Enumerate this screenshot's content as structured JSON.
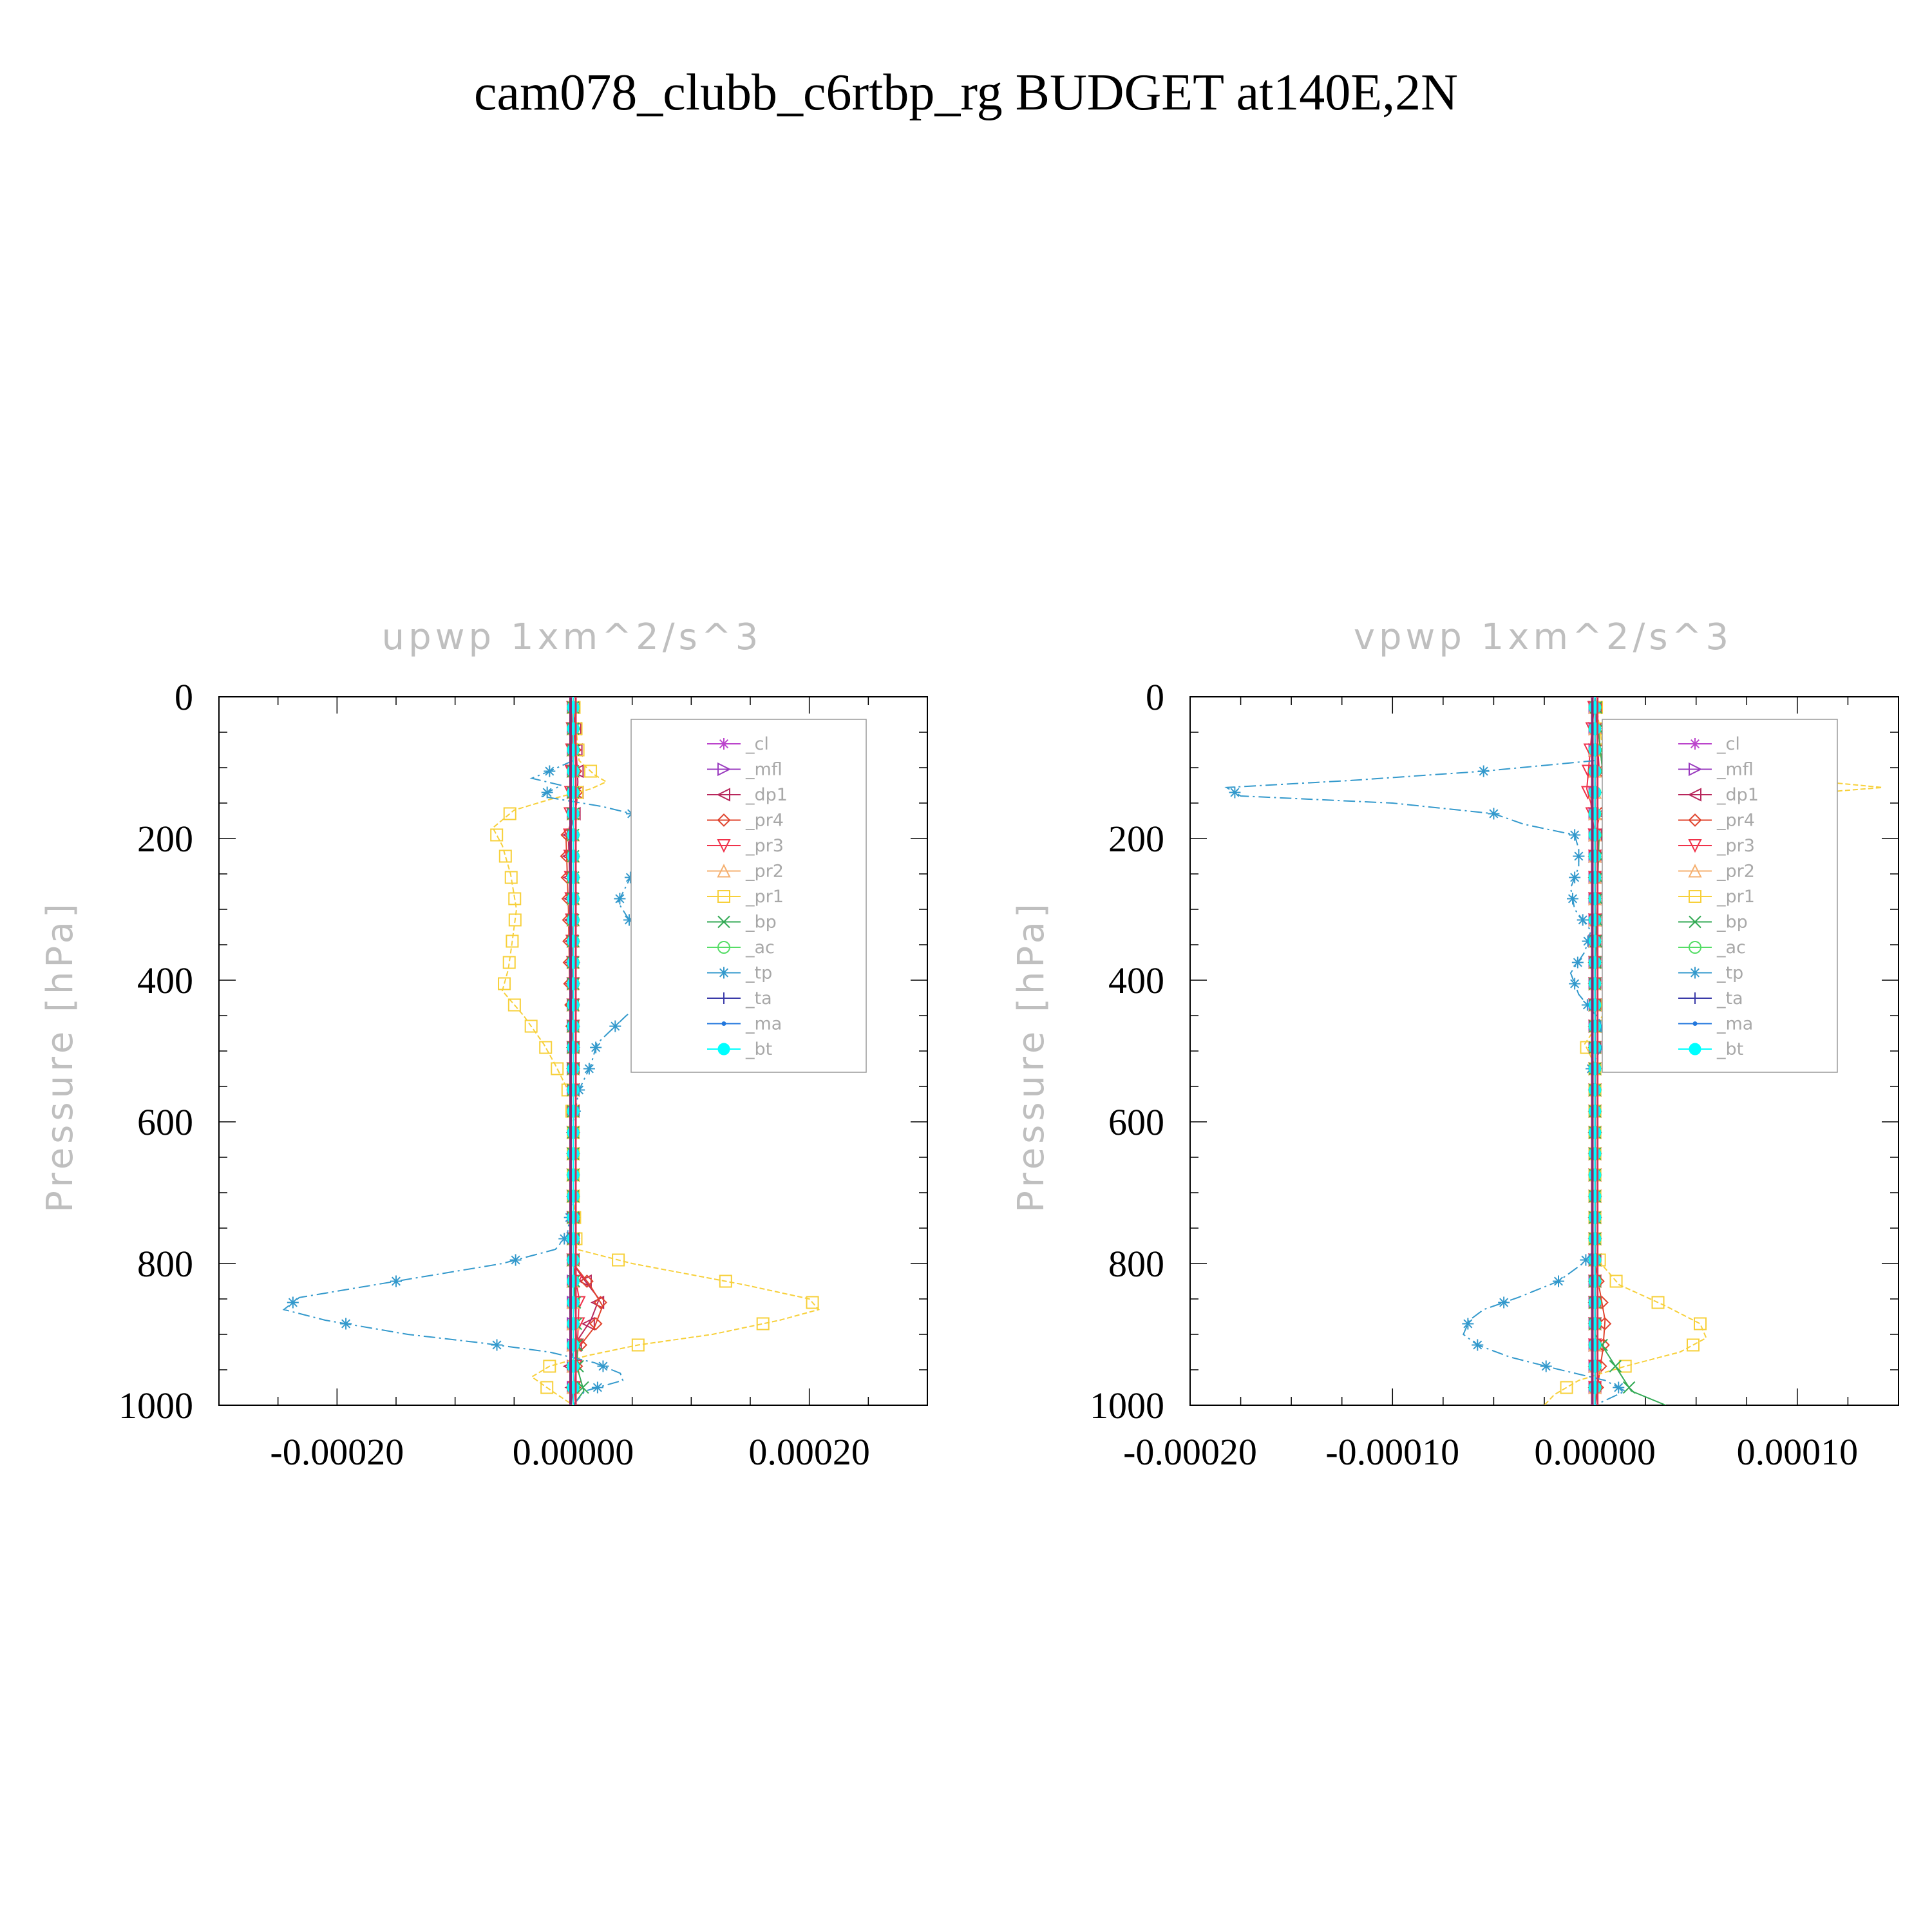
{
  "title": "cam078_clubb_c6rtbp_rg  BUDGET at140E,2N",
  "chart_data": [
    {
      "type": "line",
      "title": "upwp   1xm^2/s^3",
      "ylabel": "Pressure [hPa]",
      "xlim": [
        -0.0003,
        0.0003
      ],
      "ylim": [
        1000,
        0
      ],
      "xticks": [
        -0.0002,
        0.0,
        0.0002
      ],
      "xtick_labels": [
        "-0.00020",
        "0.00000",
        "0.00020"
      ],
      "yticks": [
        0,
        200,
        400,
        600,
        800,
        1000
      ],
      "ytick_labels": [
        "0",
        "200",
        "400",
        "600",
        "800",
        "1000"
      ],
      "legend": "top-right",
      "series": [
        {
          "name": "_cl",
          "color": "#bb44cc",
          "marker": "star",
          "p": [
            0,
            200,
            400,
            600,
            800,
            1000
          ],
          "x": [
            0,
            0,
            0,
            0,
            0,
            0
          ]
        },
        {
          "name": "_mfl",
          "color": "#9a3bbf",
          "marker": "tri-right",
          "p": [
            0,
            200,
            400,
            600,
            800,
            1000
          ],
          "x": [
            0,
            0,
            0,
            0,
            0,
            0
          ]
        },
        {
          "name": "_dp1",
          "color": "#b8275c",
          "marker": "tri-left",
          "p": [
            0,
            120,
            150,
            200,
            300,
            400,
            500,
            600,
            800,
            820,
            850,
            880,
            910,
            940,
            1000
          ],
          "x": [
            0,
            4e-06,
            3e-06,
            -4e-06,
            -2e-06,
            -1e-06,
            0,
            0,
            0,
            8e-06,
            2.2e-05,
            1.5e-05,
            3e-06,
            -3e-06,
            0
          ]
        },
        {
          "name": "_pr4",
          "color": "#e0442e",
          "marker": "diamond",
          "p": [
            0,
            150,
            200,
            300,
            400,
            500,
            600,
            800,
            830,
            860,
            890,
            920,
            1000
          ],
          "x": [
            0,
            3e-06,
            -6e-06,
            -4e-06,
            -3e-06,
            0,
            0,
            0,
            1.4e-05,
            2.5e-05,
            1.8e-05,
            4e-06,
            0
          ]
        },
        {
          "name": "_pr3",
          "color": "#f0324a",
          "marker": "tri-down",
          "p": [
            0,
            200,
            400,
            600,
            800,
            850,
            900,
            1000
          ],
          "x": [
            0,
            -3e-06,
            0,
            0,
            0,
            5e-06,
            4e-06,
            0
          ]
        },
        {
          "name": "_pr2",
          "color": "#f5b070",
          "marker": "tri-up",
          "p": [
            0,
            200,
            400,
            600,
            800,
            1000
          ],
          "x": [
            0,
            0,
            0,
            0,
            0,
            0
          ]
        },
        {
          "name": "_pr1",
          "color": "#f7d03a",
          "marker": "square",
          "p": [
            0,
            90,
            110,
            120,
            130,
            145,
            160,
            185,
            210,
            250,
            300,
            350,
            385,
            415,
            450,
            490,
            520,
            560,
            600,
            700,
            780,
            800,
            830,
            850,
            865,
            880,
            900,
            915,
            930,
            945,
            960,
            980,
            1000
          ],
          "x": [
            0,
            5e-06,
            1.8e-05,
            2.8e-05,
            1.5e-05,
            -2e-05,
            -5e-05,
            -6.8e-05,
            -6e-05,
            -5.3e-05,
            -4.8e-05,
            -5.2e-05,
            -5.5e-05,
            -6e-05,
            -4.2e-05,
            -2.5e-05,
            -1.5e-05,
            -3e-06,
            0,
            0,
            3e-06,
            5e-05,
            0.000145,
            0.0002,
            0.000208,
            0.000175,
            0.000118,
            5.5e-05,
            1.2e-05,
            -2e-05,
            -3.5e-05,
            -1.8e-05,
            0
          ]
        },
        {
          "name": "_bp",
          "color": "#33aa55",
          "marker": "x",
          "p": [
            0,
            200,
            400,
            600,
            800,
            950,
            980,
            1000
          ],
          "x": [
            0,
            0,
            0,
            0,
            0,
            4e-06,
            9e-06,
            0
          ]
        },
        {
          "name": "_ac",
          "color": "#55dd66",
          "marker": "circle",
          "p": [
            0,
            200,
            400,
            600,
            800,
            1000
          ],
          "x": [
            0,
            0,
            0,
            0,
            0,
            0
          ]
        },
        {
          "name": "_tp",
          "color": "#3399cc",
          "marker": "asterisk",
          "p": [
            0,
            90,
            105,
            115,
            125,
            140,
            155,
            170,
            185,
            215,
            250,
            290,
            335,
            385,
            415,
            450,
            490,
            520,
            555,
            600,
            700,
            760,
            780,
            800,
            825,
            848,
            865,
            880,
            900,
            912,
            925,
            940,
            955,
            965,
            980,
            1000
          ],
          "x": [
            0,
            0,
            -2e-05,
            -3.5e-05,
            -1e-05,
            -2.8e-05,
            2.5e-05,
            6.2e-05,
            8.5e-05,
            6.8e-05,
            5e-05,
            3.8e-05,
            5.5e-05,
            6e-05,
            7.2e-05,
            4.5e-05,
            2e-05,
            1.5e-05,
            5e-06,
            0,
            0,
            -5e-06,
            -1.5e-05,
            -6e-05,
            -0.00015,
            -0.000232,
            -0.000245,
            -0.00021,
            -0.00014,
            -7.8e-05,
            -2e-05,
            1.8e-05,
            4e-05,
            4.2e-05,
            1e-05,
            0
          ]
        },
        {
          "name": "_ta",
          "color": "#3a3aa8",
          "marker": "plus",
          "p": [
            0,
            200,
            400,
            600,
            800,
            1000
          ],
          "x": [
            0,
            0,
            0,
            0,
            0,
            0
          ]
        },
        {
          "name": "_ma",
          "color": "#2277dd",
          "marker": "dot",
          "p": [
            0,
            200,
            400,
            600,
            800,
            1000
          ],
          "x": [
            0,
            0,
            0,
            0,
            0,
            0
          ]
        },
        {
          "name": "_bt",
          "color": "#00ffff",
          "marker": "filled-circle",
          "p": [
            0,
            200,
            400,
            600,
            800,
            1000
          ],
          "x": [
            0,
            0,
            0,
            0,
            0,
            0
          ]
        }
      ]
    },
    {
      "type": "line",
      "title": "vpwp   1xm^2/s^3",
      "ylabel": "Pressure [hPa]",
      "xlim": [
        -0.0002,
        0.00015
      ],
      "ylim": [
        1000,
        0
      ],
      "xticks": [
        -0.0002,
        -0.0001,
        0.0,
        0.0001
      ],
      "xtick_labels": [
        "-0.00020",
        "-0.00010",
        "0.00000",
        "0.00010"
      ],
      "yticks": [
        0,
        200,
        400,
        600,
        800,
        1000
      ],
      "ytick_labels": [
        "0",
        "200",
        "400",
        "600",
        "800",
        "1000"
      ],
      "legend": "top-right",
      "series": [
        {
          "name": "_cl",
          "color": "#bb44cc",
          "marker": "star",
          "p": [
            0,
            200,
            400,
            600,
            800,
            1000
          ],
          "x": [
            0,
            0,
            0,
            0,
            0,
            0
          ]
        },
        {
          "name": "_mfl",
          "color": "#9a3bbf",
          "marker": "tri-right",
          "p": [
            0,
            200,
            400,
            600,
            800,
            1000
          ],
          "x": [
            0,
            0,
            0,
            0,
            0,
            0
          ]
        },
        {
          "name": "_dp1",
          "color": "#b8275c",
          "marker": "tri-left",
          "p": [
            0,
            100,
            120,
            135,
            150,
            170,
            200,
            400,
            600,
            800,
            1000
          ],
          "x": [
            0,
            2e-06,
            1e-05,
            1.6e-05,
            8e-06,
            2e-06,
            0,
            0,
            0,
            0,
            0
          ]
        },
        {
          "name": "_pr4",
          "color": "#e0442e",
          "marker": "diamond",
          "p": [
            0,
            110,
            130,
            145,
            170,
            200,
            400,
            600,
            800,
            880,
            920,
            1000
          ],
          "x": [
            0,
            4e-06,
            1.2e-05,
            8e-06,
            2e-06,
            0,
            0,
            0,
            0,
            5e-06,
            4e-06,
            0
          ]
        },
        {
          "name": "_pr3",
          "color": "#f0324a",
          "marker": "tri-down",
          "p": [
            0,
            130,
            150,
            200,
            400,
            600,
            800,
            1000
          ],
          "x": [
            0,
            -4e-06,
            -2e-06,
            0,
            0,
            0,
            0,
            0
          ]
        },
        {
          "name": "_pr2",
          "color": "#f5b070",
          "marker": "tri-up",
          "p": [
            0,
            200,
            400,
            600,
            800,
            1000
          ],
          "x": [
            0,
            0,
            0,
            0,
            0,
            0
          ]
        },
        {
          "name": "_pr1",
          "color": "#f7d03a",
          "marker": "square",
          "p": [
            0,
            95,
            115,
            128,
            140,
            160,
            185,
            205,
            230,
            265,
            290,
            330,
            370,
            400,
            425,
            460,
            490,
            520,
            560,
            600,
            700,
            780,
            800,
            830,
            860,
            885,
            905,
            925,
            945,
            965,
            985,
            1000
          ],
          "x": [
            0,
            5e-06,
            9.5e-05,
            0.000142,
            9e-05,
            2.5e-05,
            5e-06,
            1.2e-05,
            1.5e-05,
            1.8e-05,
            1.2e-05,
            5e-06,
            1e-05,
            1.2e-05,
            8e-06,
            2e-06,
            -5e-06,
            0,
            0,
            0,
            0,
            0,
            3e-06,
            1.2e-05,
            3.5e-05,
            5.2e-05,
            5.5e-05,
            4.2e-05,
            1.5e-05,
            -8e-06,
            -2e-05,
            -2.5e-05
          ]
        },
        {
          "name": "_bp",
          "color": "#33aa55",
          "marker": "x",
          "p": [
            0,
            110,
            125,
            140,
            165,
            200,
            400,
            600,
            800,
            900,
            980,
            1000
          ],
          "x": [
            0,
            4e-06,
            1.8e-05,
            2.8e-05,
            1.2e-05,
            2e-06,
            0,
            0,
            0,
            0,
            1.8e-05,
            3.5e-05
          ]
        },
        {
          "name": "_ac",
          "color": "#55dd66",
          "marker": "circle",
          "p": [
            0,
            200,
            400,
            600,
            800,
            1000
          ],
          "x": [
            0,
            0,
            0,
            0,
            0,
            0
          ]
        },
        {
          "name": "_tp",
          "color": "#3399cc",
          "marker": "asterisk",
          "p": [
            0,
            90,
            105,
            118,
            128,
            140,
            150,
            165,
            180,
            195,
            215,
            240,
            270,
            300,
            330,
            360,
            390,
            420,
            455,
            490,
            520,
            560,
            600,
            700,
            780,
            800,
            825,
            848,
            865,
            880,
            900,
            915,
            932,
            948,
            965,
            980,
            1000
          ],
          "x": [
            0,
            0,
            -5.5e-05,
            -0.00012,
            -0.000182,
            -0.000175,
            -0.0001,
            -5e-05,
            -3.5e-05,
            -1e-05,
            -8e-06,
            -8e-06,
            -1.2e-05,
            -1e-05,
            -2e-06,
            -5e-06,
            -1.2e-05,
            -8e-06,
            2e-06,
            5e-06,
            -2e-06,
            0,
            0,
            0,
            0,
            -6e-06,
            -1.8e-05,
            -3.8e-05,
            -5.5e-05,
            -6.2e-05,
            -6.5e-05,
            -5.8e-05,
            -4.2e-05,
            -2e-05,
            5e-06,
            1.5e-05,
            0
          ]
        },
        {
          "name": "_ta",
          "color": "#3a3aa8",
          "marker": "plus",
          "p": [
            0,
            200,
            400,
            600,
            800,
            1000
          ],
          "x": [
            0,
            0,
            0,
            0,
            0,
            0
          ]
        },
        {
          "name": "_ma",
          "color": "#2277dd",
          "marker": "dot",
          "p": [
            0,
            200,
            400,
            600,
            800,
            1000
          ],
          "x": [
            0,
            0,
            0,
            0,
            0,
            0
          ]
        },
        {
          "name": "_bt",
          "color": "#00ffff",
          "marker": "filled-circle",
          "p": [
            0,
            200,
            400,
            600,
            800,
            1000
          ],
          "x": [
            0,
            0,
            0,
            0,
            0,
            0
          ]
        }
      ]
    }
  ]
}
